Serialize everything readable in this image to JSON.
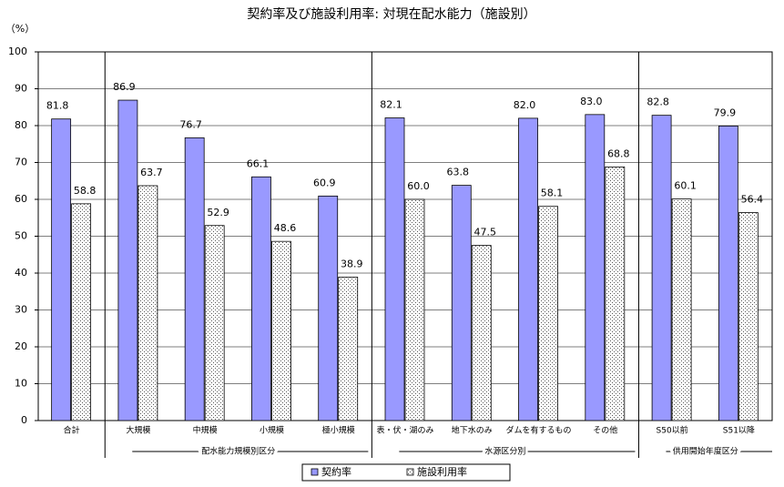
{
  "chart_data": {
    "type": "bar",
    "title": "契約率及び施設利用率: 対現在配水能力（施設別）",
    "y_label": "（%）",
    "categories": [
      "合計",
      "大規模",
      "中規模",
      "小規模",
      "極小規模",
      "表・伏・湖のみ",
      "地下水のみ",
      "ダムを有するもの",
      "その他",
      "S50以前",
      "S51以降"
    ],
    "groups": [
      "配水能力規模別区分",
      "水源区分別",
      "供用開始年度区分"
    ],
    "series": [
      {
        "name": "契約率",
        "color": "#9999ff",
        "values": [
          81.8,
          86.9,
          76.7,
          66.1,
          60.9,
          82.1,
          63.8,
          82.0,
          83.0,
          82.8,
          79.9
        ],
        "value_labels": [
          "81.8",
          "86.9",
          "76.7",
          "66.1",
          "60.9",
          "82.1",
          "63.8",
          "82.0",
          "83.0",
          "82.8",
          "79.9"
        ]
      },
      {
        "name": "施設利用率",
        "color": "#ffffff",
        "values": [
          58.8,
          63.7,
          52.9,
          48.6,
          38.9,
          60.0,
          47.5,
          58.1,
          68.8,
          60.1,
          56.4
        ],
        "value_labels": [
          "58.8",
          "63.7",
          "52.9",
          "48.6",
          "38.9",
          "60.0",
          "47.5",
          "58.1",
          "68.8",
          "60.1",
          "56.4"
        ]
      }
    ],
    "ylim": [
      0,
      100
    ],
    "yticks": [
      0,
      10,
      20,
      30,
      40,
      50,
      60,
      70,
      80,
      90,
      100
    ],
    "grid": true
  }
}
